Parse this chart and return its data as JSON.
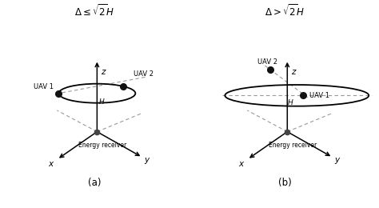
{
  "title_a": "$\\Delta \\leq \\sqrt{2}H$",
  "title_b": "$\\Delta > \\sqrt{2}H$",
  "label_a": "(a)",
  "label_b": "(b)",
  "bg_color": "#ffffff",
  "line_color": "#000000",
  "dashed_color": "#999999",
  "dot_color": "#444444",
  "uav_color": "#111111",
  "axis_color": "#333333"
}
